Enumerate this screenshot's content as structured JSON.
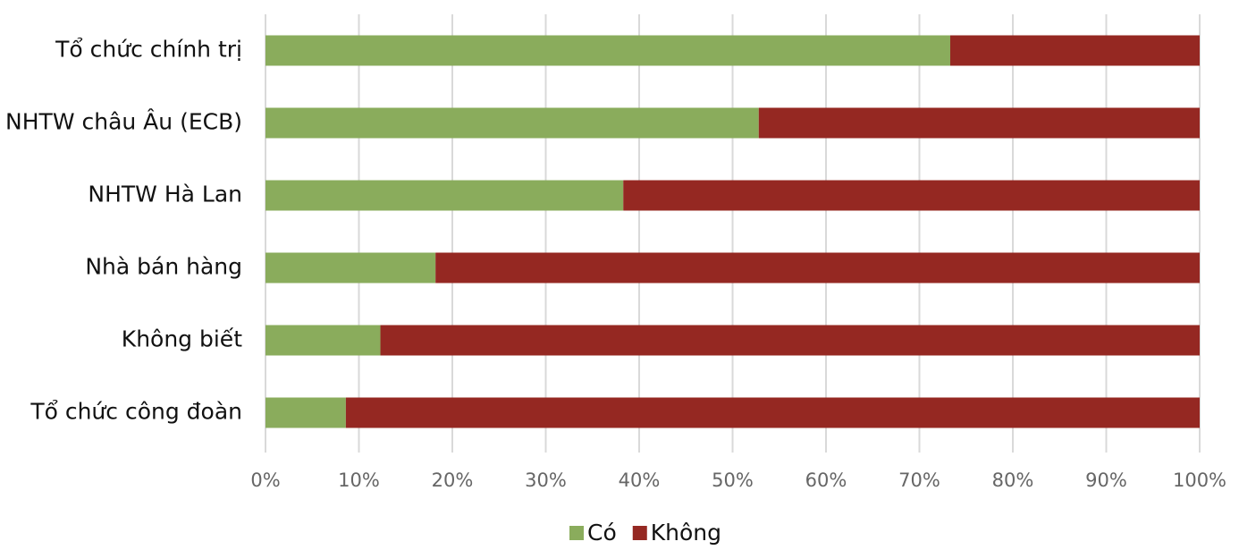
{
  "chart_data": {
    "type": "stacked-barh",
    "categories": [
      "Tổ chức chính trị",
      "NHTW châu Âu (ECB)",
      "NHTW Hà Lan",
      "Nhà bán hàng",
      "Không biết",
      "Tổ chức công đoàn"
    ],
    "series": [
      {
        "name": "Có",
        "color": "#8aac5c",
        "values": [
          73.3,
          52.8,
          38.3,
          18.2,
          12.3,
          8.6
        ]
      },
      {
        "name": "Không",
        "color": "#952822",
        "values": [
          26.7,
          47.2,
          61.7,
          81.8,
          87.7,
          91.4
        ]
      }
    ],
    "xlim": [
      0,
      100
    ],
    "xticks": [
      {
        "value": 0,
        "label": "0%"
      },
      {
        "value": 10,
        "label": "10%"
      },
      {
        "value": 20,
        "label": "20%"
      },
      {
        "value": 30,
        "label": "30%"
      },
      {
        "value": 40,
        "label": "40%"
      },
      {
        "value": 50,
        "label": "50%"
      },
      {
        "value": 60,
        "label": "60%"
      },
      {
        "value": 70,
        "label": "70%"
      },
      {
        "value": 80,
        "label": "80%"
      },
      {
        "value": 90,
        "label": "90%"
      },
      {
        "value": 100,
        "label": "100%"
      }
    ],
    "grid": true,
    "legend": "bottom"
  }
}
